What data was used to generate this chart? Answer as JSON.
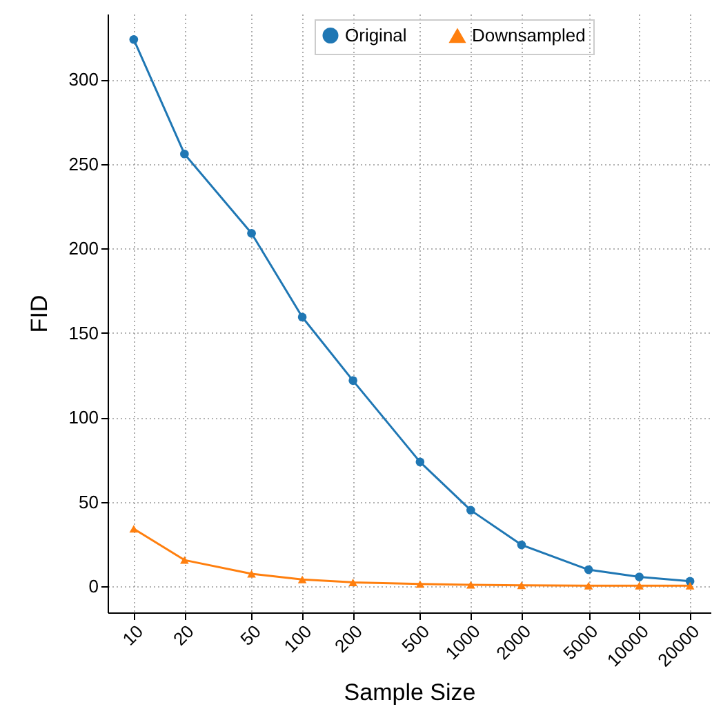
{
  "chart_data": {
    "type": "line",
    "xlabel": "Sample Size",
    "ylabel": "FID",
    "x": [
      10,
      20,
      50,
      100,
      200,
      500,
      1000,
      2000,
      5000,
      10000,
      20000
    ],
    "series": [
      {
        "name": "Original",
        "color": "#1f77b4",
        "marker": "circle",
        "values": [
          323.8,
          256,
          209,
          159.4,
          121.8,
          73.6,
          45,
          24.5,
          9.8,
          5.5,
          3
        ]
      },
      {
        "name": "Downsampled",
        "color": "#ff7f0e",
        "marker": "triangle",
        "values": [
          34,
          15.5,
          7.4,
          4,
          2.3,
          1.3,
          0.8,
          0.5,
          0.3,
          0.3,
          0.3
        ]
      }
    ],
    "log": "x",
    "xlim": [
      7,
      26500
    ],
    "xticks": [
      10,
      20,
      50,
      100,
      200,
      500,
      1000,
      2000,
      5000,
      10000,
      20000
    ],
    "ylim": [
      -15.5,
      339
    ],
    "yticks": [
      0,
      50,
      100,
      150,
      200,
      250,
      300
    ],
    "grid": true,
    "legend": "top",
    "line_style": "solid"
  }
}
